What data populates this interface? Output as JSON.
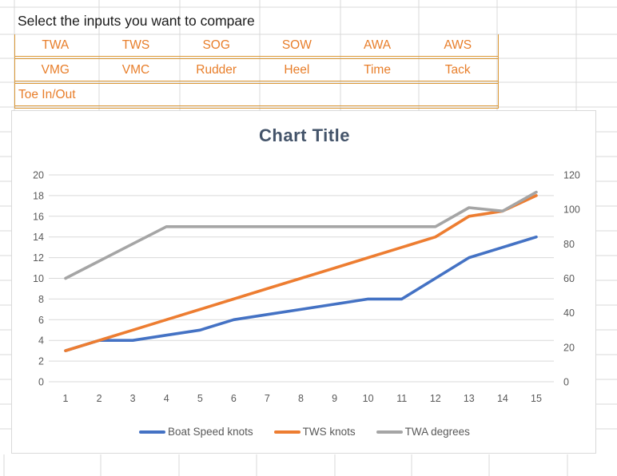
{
  "spreadsheet": {
    "prompt": "Select the inputs you want to compare",
    "accent_text_color": "#E87E2A",
    "accent_border_color": "#DC9938",
    "gridline_color": "#D9D9D9",
    "input_rows": [
      [
        "TWA",
        "TWS",
        "SOG",
        "SOW",
        "AWA",
        "AWS"
      ],
      [
        "VMG",
        "VMC",
        "Rudder",
        "Heel",
        "Time",
        "Tack"
      ],
      [
        "Toe In/Out",
        "",
        "",
        "",
        "",
        ""
      ]
    ]
  },
  "chart_data": {
    "type": "line",
    "title": "Chart Title",
    "title_color": "#44546A",
    "grid": true,
    "gridline_color": "#D9D9D9",
    "tick_color": "#595959",
    "legend_position": "bottom",
    "x": [
      1,
      2,
      3,
      4,
      5,
      6,
      7,
      8,
      9,
      10,
      11,
      12,
      13,
      14,
      15
    ],
    "left_axis": {
      "min": 0,
      "max": 20,
      "step": 2
    },
    "right_axis": {
      "min": 0,
      "max": 120,
      "step": 20
    },
    "series": [
      {
        "name": "Boat Speed knots",
        "color": "#4472C4",
        "axis": "left",
        "values": [
          3,
          4,
          4,
          4.5,
          5,
          6,
          6.5,
          7,
          7.5,
          8,
          8,
          10,
          12,
          13,
          14
        ]
      },
      {
        "name": "TWS knots",
        "color": "#ED7D31",
        "axis": "left",
        "values": [
          3,
          4,
          5,
          6,
          7,
          8,
          9,
          10,
          11,
          12,
          13,
          14,
          16,
          16.5,
          18
        ]
      },
      {
        "name": "TWA degrees",
        "color": "#A5A5A5",
        "axis": "right",
        "values": [
          60,
          70,
          80,
          90,
          90,
          90,
          90,
          90,
          90,
          90,
          90,
          90,
          101,
          99,
          110
        ]
      }
    ]
  }
}
